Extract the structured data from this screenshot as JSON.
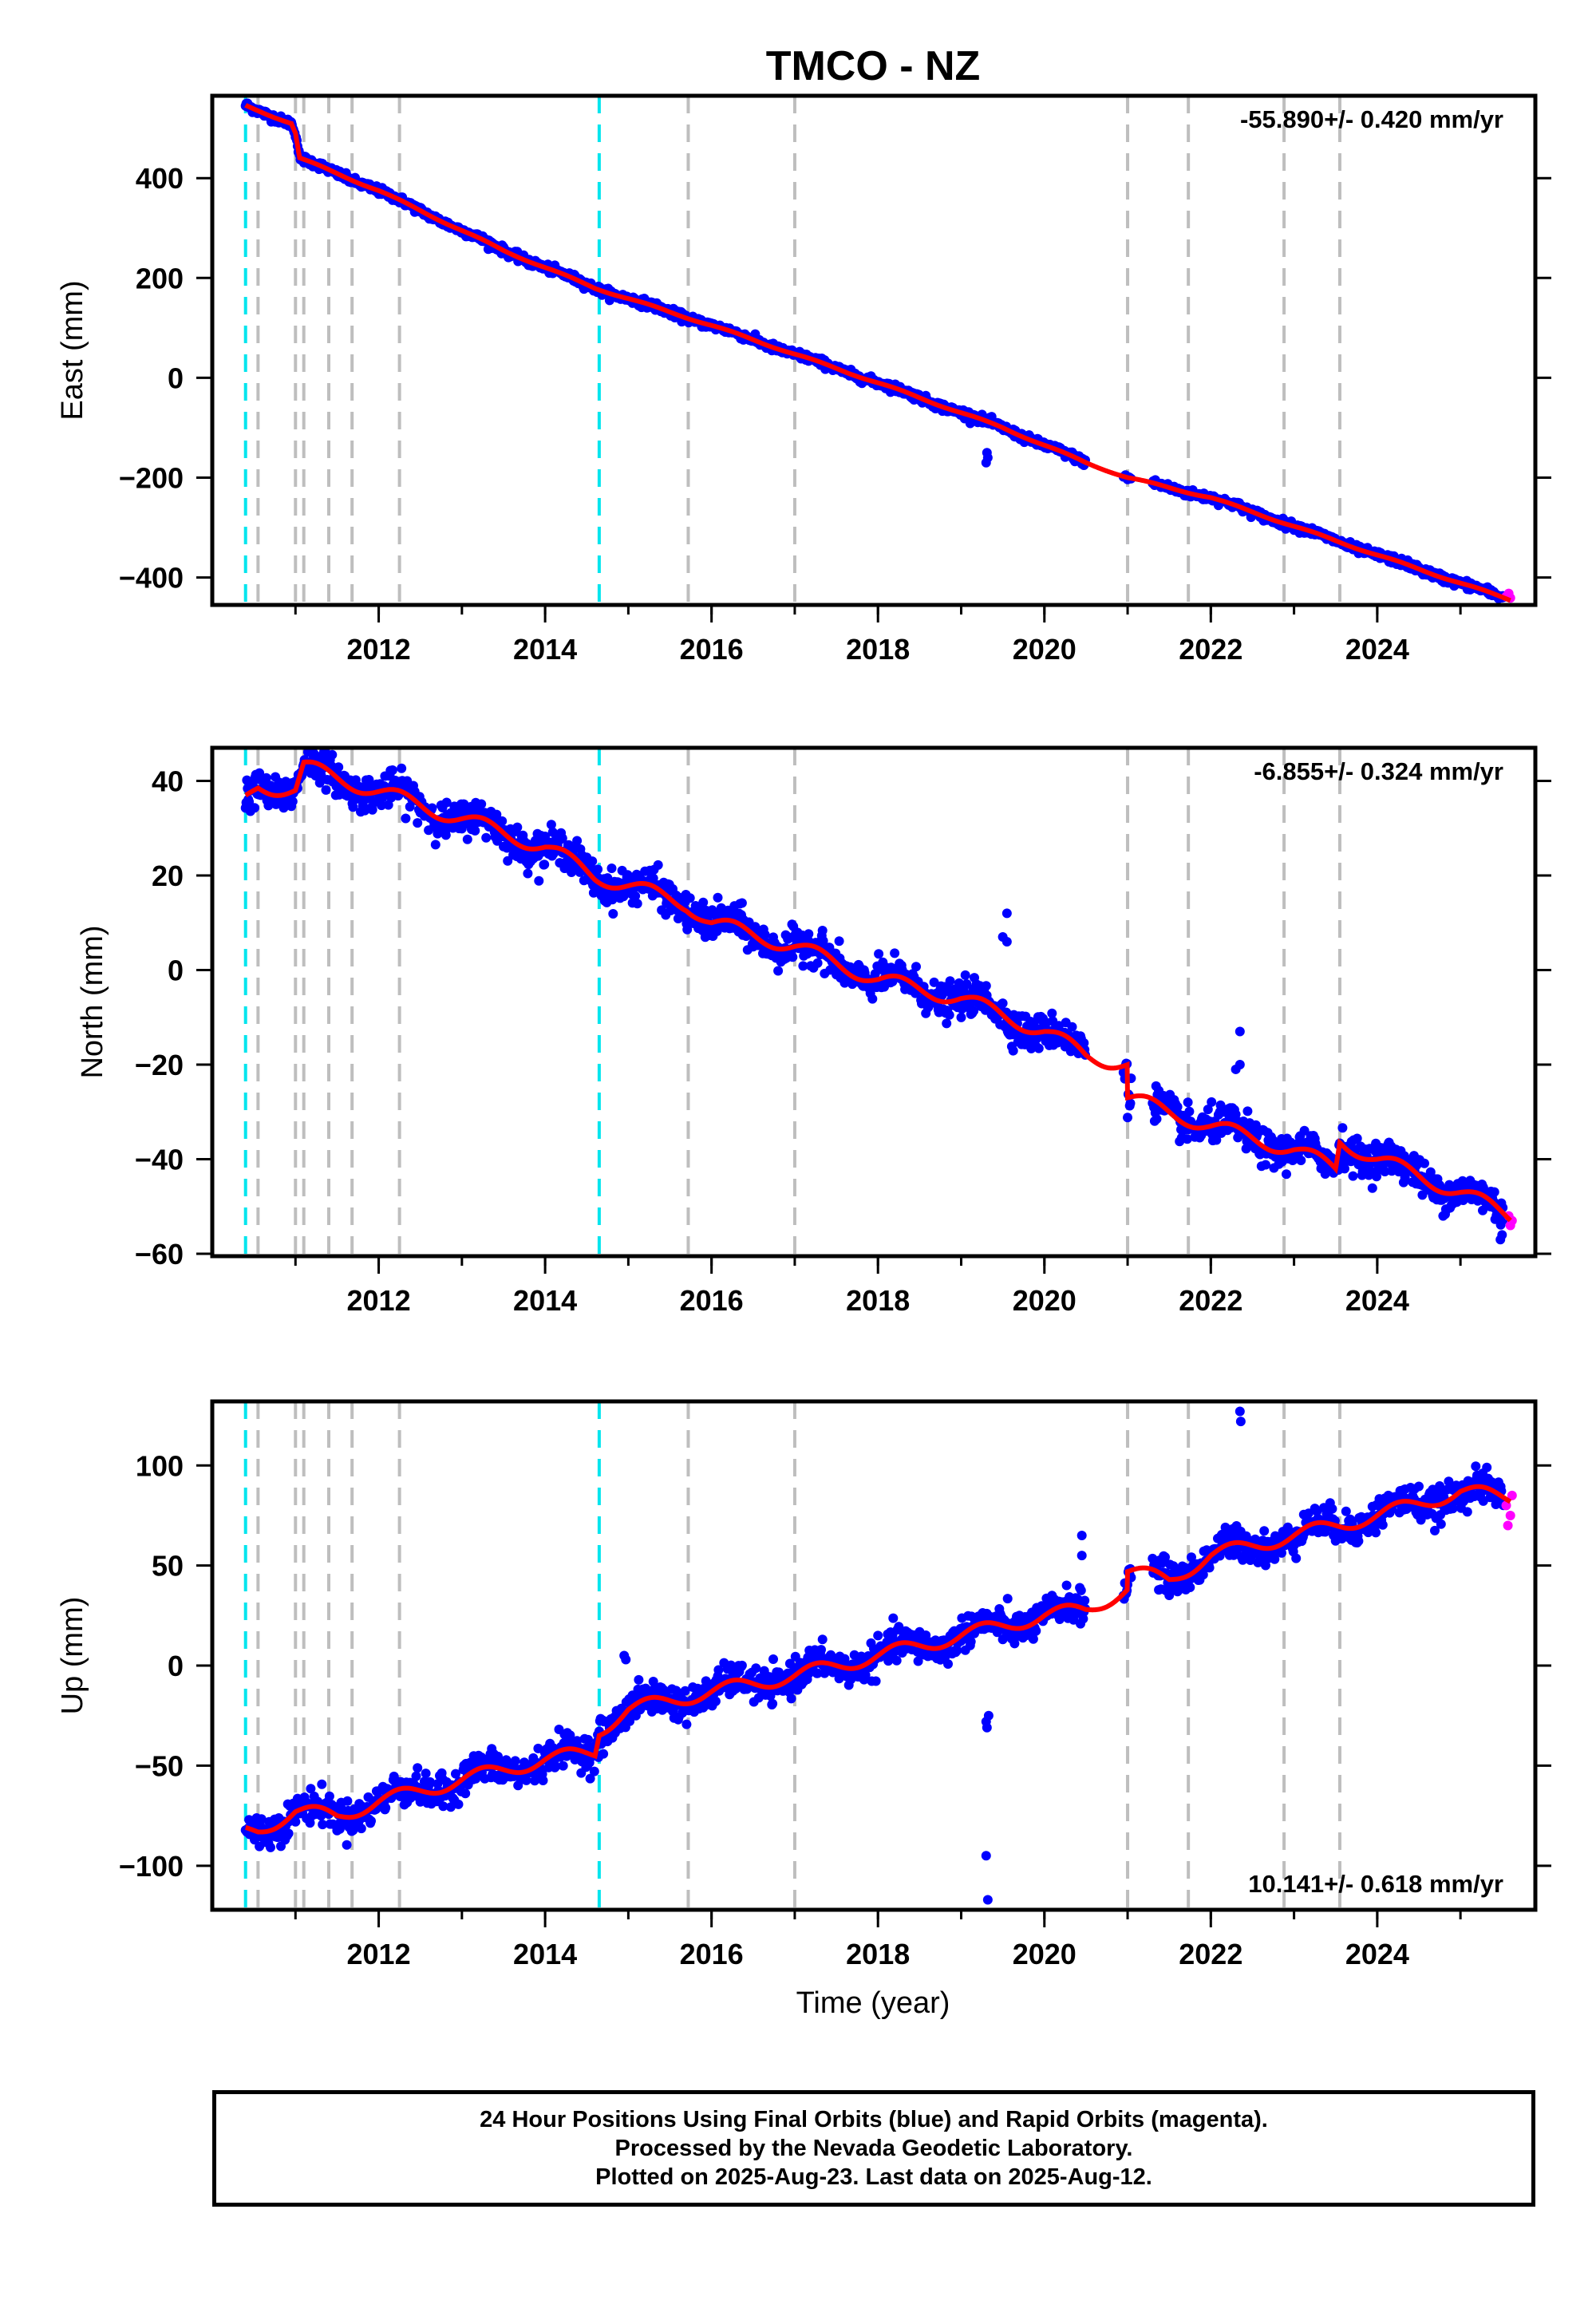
{
  "title": "TMCO - NZ",
  "xlabel": "Time (year)",
  "colors": {
    "final_orbits": "#0000ff",
    "rapid_orbits": "#ff00ff",
    "model": "#ff0000",
    "cyan_lines": "#00e5ee",
    "gray_lines": "#bebebe",
    "frame": "#000000"
  },
  "footer": {
    "line1": "24 Hour Positions Using Final Orbits (blue) and Rapid Orbits (magenta).",
    "line2": "Processed by the Nevada Geodetic Laboratory.",
    "line3": "Plotted on 2025-Aug-23. Last data on 2025-Aug-12."
  },
  "chart_data": [
    {
      "type": "scatter",
      "panel": "east",
      "ylabel": "East (mm)",
      "rate_label": "-55.890+/- 0.420 mm/yr",
      "rate_position": "top-right",
      "xlim": [
        2010.0,
        2025.9
      ],
      "ylim": [
        -455,
        565
      ],
      "xticks": [
        2012,
        2014,
        2016,
        2018,
        2020,
        2022,
        2024
      ],
      "yticks": [
        -400,
        -200,
        0,
        200,
        400
      ],
      "ytick_labels": [
        "−400",
        "−200",
        "0",
        "200",
        "400"
      ],
      "cyan_lines": [
        2010.4,
        2014.65
      ],
      "gray_lines": [
        2010.55,
        2011.0,
        2011.1,
        2011.4,
        2011.68,
        2012.25,
        2015.72,
        2017.0,
        2021.0,
        2021.73,
        2022.88,
        2023.55
      ],
      "model_knots": [
        [
          2010.4,
          545
        ],
        [
          2010.95,
          510
        ],
        [
          2011.0,
          490
        ],
        [
          2011.05,
          440
        ],
        [
          2012.0,
          375
        ],
        [
          2013.5,
          255
        ],
        [
          2014.6,
          180
        ],
        [
          2016.0,
          105
        ],
        [
          2018.0,
          -10
        ],
        [
          2019.5,
          -100
        ],
        [
          2020.5,
          -170
        ],
        [
          2021.0,
          -200
        ],
        [
          2022.0,
          -240
        ],
        [
          2024.0,
          -355
        ],
        [
          2025.6,
          -445
        ]
      ],
      "outliers": [
        [
          2019.3,
          -170
        ],
        [
          2019.32,
          -160
        ],
        [
          2019.31,
          -150
        ],
        [
          2022.3,
          -250
        ]
      ],
      "noise": 4,
      "seasonal": 2,
      "gaps": [
        [
          2020.5,
          2020.95
        ],
        [
          2021.05,
          2021.3
        ]
      ],
      "rapid": [
        [
          2025.55,
          -438
        ],
        [
          2025.58,
          -432
        ],
        [
          2025.6,
          -441
        ]
      ]
    },
    {
      "type": "scatter",
      "panel": "north",
      "ylabel": "North (mm)",
      "rate_label": "-6.855+/- 0.324 mm/yr",
      "rate_position": "top-right",
      "xlim": [
        2010.0,
        2025.9
      ],
      "ylim": [
        -60.5,
        47
      ],
      "xticks": [
        2012,
        2014,
        2016,
        2018,
        2020,
        2022,
        2024
      ],
      "yticks": [
        -60,
        -40,
        -20,
        0,
        20,
        40
      ],
      "ytick_labels": [
        "−60",
        "−40",
        "−20",
        "0",
        "20",
        "40"
      ],
      "cyan_lines": [
        2010.4,
        2014.65
      ],
      "gray_lines": [
        2010.55,
        2011.0,
        2011.1,
        2011.4,
        2011.68,
        2012.25,
        2015.72,
        2017.0,
        2021.0,
        2021.73,
        2022.88,
        2023.55
      ],
      "model_knots": [
        [
          2010.4,
          36
        ],
        [
          2010.55,
          39
        ],
        [
          2011.0,
          38
        ],
        [
          2011.1,
          43
        ],
        [
          2012.3,
          36
        ],
        [
          2013.0,
          32
        ],
        [
          2014.0,
          26
        ],
        [
          2014.6,
          20
        ],
        [
          2015.7,
          14
        ],
        [
          2016.0,
          10
        ],
        [
          2017.0,
          5
        ],
        [
          2018.0,
          -2
        ],
        [
          2019.0,
          -6
        ],
        [
          2020.0,
          -13
        ],
        [
          2020.5,
          -18
        ],
        [
          2021.0,
          -20
        ],
        [
          2021.0,
          -27
        ],
        [
          2022.0,
          -33
        ],
        [
          2023.0,
          -38
        ],
        [
          2023.5,
          -42
        ],
        [
          2023.55,
          -36
        ],
        [
          2024.0,
          -40
        ],
        [
          2025.0,
          -47
        ],
        [
          2025.6,
          -52
        ]
      ],
      "outliers": [
        [
          2019.55,
          12
        ],
        [
          2019.5,
          7
        ],
        [
          2019.55,
          6
        ],
        [
          2022.35,
          -13
        ],
        [
          2022.35,
          -20
        ],
        [
          2022.3,
          -21
        ],
        [
          2025.5,
          -56
        ],
        [
          2025.48,
          -57
        ]
      ],
      "noise": 1.8,
      "seasonal": 1.8,
      "gaps": [
        [
          2020.5,
          2020.95
        ],
        [
          2021.05,
          2021.3
        ]
      ],
      "rapid": [
        [
          2025.58,
          -52
        ],
        [
          2025.6,
          -54
        ],
        [
          2025.62,
          -53
        ]
      ]
    },
    {
      "type": "scatter",
      "panel": "up",
      "ylabel": "Up (mm)",
      "rate_label": "10.141+/- 0.618 mm/yr",
      "rate_position": "bottom-right",
      "xlim": [
        2010.0,
        2025.9
      ],
      "ylim": [
        -122,
        132
      ],
      "xticks": [
        2012,
        2014,
        2016,
        2018,
        2020,
        2022,
        2024
      ],
      "yticks": [
        -100,
        -50,
        0,
        50,
        100
      ],
      "ytick_labels": [
        "−100",
        "−50",
        "0",
        "50",
        "100"
      ],
      "cyan_lines": [
        2010.4,
        2014.65
      ],
      "gray_lines": [
        2010.55,
        2011.0,
        2011.1,
        2011.4,
        2011.68,
        2012.25,
        2015.72,
        2017.0,
        2021.0,
        2021.73,
        2022.88,
        2023.55
      ],
      "model_knots": [
        [
          2010.4,
          -83
        ],
        [
          2010.55,
          -82
        ],
        [
          2011.0,
          -73
        ],
        [
          2011.5,
          -75
        ],
        [
          2012.0,
          -68
        ],
        [
          2013.0,
          -57
        ],
        [
          2014.0,
          -47
        ],
        [
          2014.6,
          -43
        ],
        [
          2014.65,
          -32
        ],
        [
          2015.0,
          -22
        ],
        [
          2016.0,
          -13
        ],
        [
          2017.0,
          -5
        ],
        [
          2018.0,
          5
        ],
        [
          2019.0,
          15
        ],
        [
          2020.0,
          25
        ],
        [
          2020.5,
          28
        ],
        [
          2021.0,
          38
        ],
        [
          2021.0,
          47
        ],
        [
          2021.5,
          43
        ],
        [
          2022.0,
          55
        ],
        [
          2023.0,
          65
        ],
        [
          2024.0,
          75
        ],
        [
          2025.0,
          87
        ],
        [
          2025.6,
          84
        ]
      ],
      "outliers": [
        [
          2019.3,
          -95
        ],
        [
          2019.32,
          -117
        ],
        [
          2019.3,
          -28
        ],
        [
          2019.31,
          -31
        ],
        [
          2019.33,
          -25
        ],
        [
          2014.95,
          5
        ],
        [
          2014.97,
          3
        ],
        [
          2020.45,
          65
        ],
        [
          2020.45,
          55
        ],
        [
          2022.35,
          127
        ],
        [
          2022.36,
          122
        ]
      ],
      "noise": 4,
      "seasonal": 4,
      "gaps": [
        [
          2020.5,
          2020.95
        ],
        [
          2021.05,
          2021.3
        ]
      ],
      "rapid": [
        [
          2025.55,
          80
        ],
        [
          2025.57,
          70
        ],
        [
          2025.6,
          75
        ],
        [
          2025.62,
          85
        ]
      ]
    }
  ]
}
